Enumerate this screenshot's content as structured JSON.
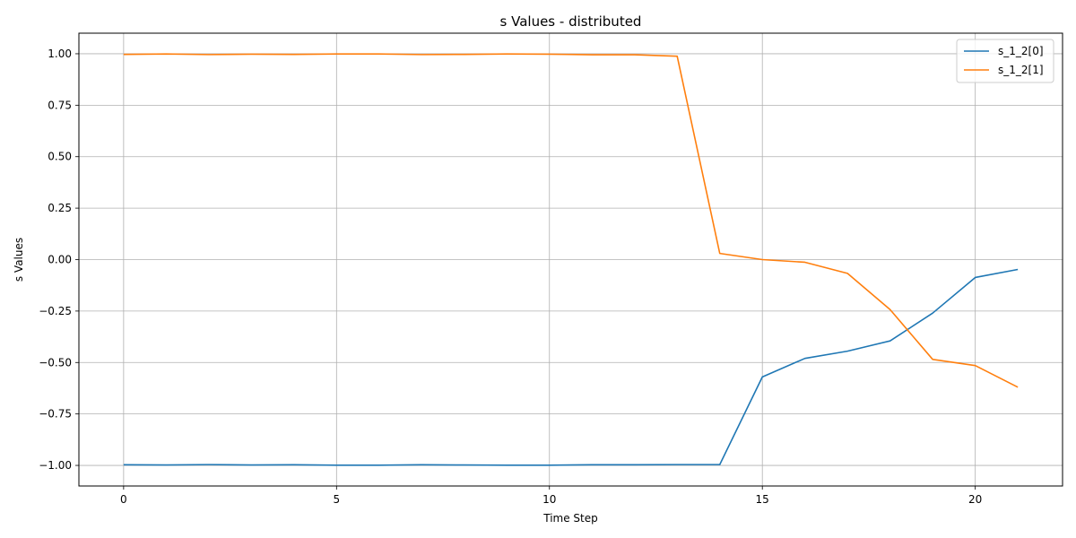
{
  "chart_data": {
    "type": "line",
    "title": "s Values - distributed",
    "xlabel": "Time Step",
    "ylabel": "s Values",
    "xlim": [
      -1.05,
      22.05
    ],
    "ylim": [
      -1.1,
      1.1
    ],
    "xticks": [
      0,
      5,
      10,
      15,
      20
    ],
    "yticks": [
      -1.0,
      -0.75,
      -0.5,
      -0.25,
      0.0,
      0.25,
      0.5,
      0.75,
      1.0
    ],
    "ytick_labels": [
      "−1.00",
      "−0.75",
      "−0.50",
      "−0.25",
      "0.00",
      "0.25",
      "0.50",
      "0.75",
      "1.00"
    ],
    "grid": true,
    "legend_position": "top-right",
    "x": [
      0,
      1,
      2,
      3,
      4,
      5,
      6,
      7,
      8,
      9,
      10,
      11,
      12,
      13,
      14,
      15,
      16,
      17,
      18,
      19,
      20,
      21
    ],
    "series": [
      {
        "name": "s_1_2[0]",
        "color": "#1f77b4",
        "values": [
          -0.997,
          -0.998,
          -0.996,
          -0.998,
          -0.997,
          -0.999,
          -0.999,
          -0.997,
          -0.998,
          -0.999,
          -0.999,
          -0.997,
          -0.997,
          -0.996,
          -0.996,
          -0.57,
          -0.48,
          -0.445,
          -0.395,
          -0.26,
          -0.087,
          -0.048
        ]
      },
      {
        "name": "s_1_2[1]",
        "color": "#ff7f0e",
        "values": [
          0.997,
          0.999,
          0.996,
          0.998,
          0.997,
          0.999,
          0.999,
          0.996,
          0.997,
          0.999,
          0.998,
          0.995,
          0.995,
          0.988,
          0.03,
          0.0,
          -0.013,
          -0.067,
          -0.243,
          -0.485,
          -0.515,
          -0.62
        ]
      }
    ]
  }
}
